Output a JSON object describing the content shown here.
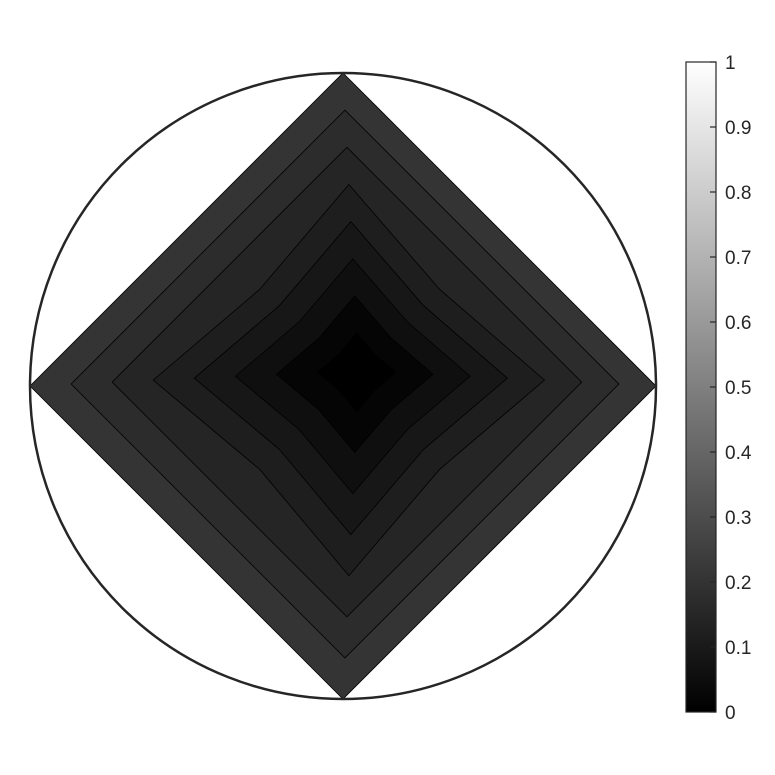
{
  "chart_data": {
    "type": "contour",
    "title": "",
    "xlabel": "",
    "ylabel": "",
    "colormap": "gray",
    "domain": "unit-disk",
    "boundary_circle": true,
    "filled_region": "square |x|+|y| <= 1",
    "minimum_location": [
      0.05,
      0.05
    ],
    "contour_levels": [
      0.03,
      0.06,
      0.09,
      0.12,
      0.15,
      0.18,
      0.21
    ],
    "outer_region_value": 0.24,
    "level_shades": [
      "#000000",
      "#050505",
      "#0f0f0f",
      "#171717",
      "#1e1e1e",
      "#252525",
      "#2c2c2c",
      "#343434"
    ],
    "colorbar": {
      "range": [
        0,
        1
      ],
      "ticks": [
        "0",
        "0.1",
        "0.2",
        "0.3",
        "0.4",
        "0.5",
        "0.6",
        "0.7",
        "0.8",
        "0.9",
        "1"
      ]
    },
    "grid": false,
    "legend": "colorbar-right"
  }
}
